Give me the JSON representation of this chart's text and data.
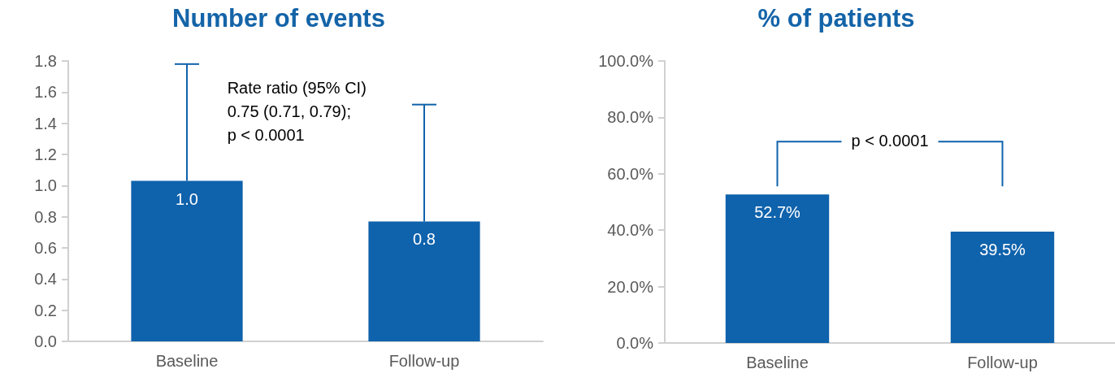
{
  "chart_data": [
    {
      "type": "bar",
      "title": "Number of events",
      "categories": [
        "Baseline",
        "Follow-up"
      ],
      "series": [
        {
          "color": "#0f62ac",
          "values": [
            1.03,
            0.77
          ],
          "value_labels": [
            "1.0",
            "0.8"
          ],
          "errors": [
            [
              1.03,
              1.78
            ],
            [
              0.77,
              1.52
            ]
          ]
        }
      ],
      "ylim": [
        0,
        1.8
      ],
      "yticks": [
        {
          "value": 0,
          "label": "0.0"
        },
        0.2,
        0.4,
        0.6,
        0.8,
        {
          "value": 1,
          "label": "1.0"
        },
        1.2,
        1.4,
        1.6,
        1.8
      ],
      "grid": false,
      "annotations": [
        "Rate ratio (95% CI)\n0.75 (0.71, 0.79);\np < 0.0001"
      ]
    },
    {
      "type": "bar",
      "title": "% of patients",
      "categories": [
        "Baseline",
        "Follow-up"
      ],
      "series": [
        {
          "color": "#0f62ac",
          "values": [
            52.7,
            39.5
          ],
          "value_labels": [
            "52.7%",
            "39.5%"
          ]
        }
      ],
      "ylim": [
        0,
        100
      ],
      "yticks": [
        {
          "value": 0,
          "label": "0.0%"
        },
        {
          "value": 20,
          "label": "20.0%"
        },
        {
          "value": 40,
          "label": "40.0%"
        },
        {
          "value": 60,
          "label": "60.0%"
        },
        {
          "value": 80,
          "label": "80.0%"
        },
        {
          "value": 100,
          "label": "100.0%"
        }
      ],
      "grid": false,
      "annotations": [
        "p < 0.0001"
      ]
    }
  ]
}
